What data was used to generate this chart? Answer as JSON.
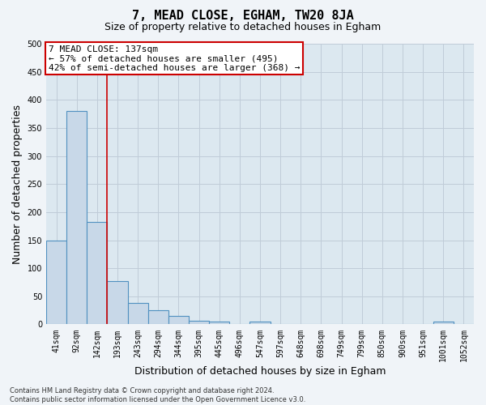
{
  "title1": "7, MEAD CLOSE, EGHAM, TW20 8JA",
  "title2": "Size of property relative to detached houses in Egham",
  "xlabel": "Distribution of detached houses by size in Egham",
  "ylabel": "Number of detached properties",
  "annotation_line1": "7 MEAD CLOSE: 137sqm",
  "annotation_line2": "← 57% of detached houses are smaller (495)",
  "annotation_line3": "42% of semi-detached houses are larger (368) →",
  "categories": [
    "41sqm",
    "92sqm",
    "142sqm",
    "193sqm",
    "243sqm",
    "294sqm",
    "344sqm",
    "395sqm",
    "445sqm",
    "496sqm",
    "547sqm",
    "597sqm",
    "648sqm",
    "698sqm",
    "749sqm",
    "799sqm",
    "850sqm",
    "900sqm",
    "951sqm",
    "1001sqm",
    "1052sqm"
  ],
  "values": [
    150,
    380,
    183,
    77,
    38,
    25,
    15,
    7,
    5,
    0,
    5,
    0,
    0,
    0,
    0,
    0,
    0,
    0,
    0,
    5,
    0
  ],
  "bar_color": "#c8d8e8",
  "bar_edge_color": "#5090c0",
  "bar_edge_width": 0.8,
  "red_line_x": 2,
  "red_line_color": "#cc0000",
  "background_color": "#dce8f0",
  "fig_background_color": "#f0f4f8",
  "ylim": [
    0,
    500
  ],
  "yticks": [
    0,
    50,
    100,
    150,
    200,
    250,
    300,
    350,
    400,
    450,
    500
  ],
  "annotation_box_color": "white",
  "annotation_box_edge": "#cc0000",
  "footer": "Contains HM Land Registry data © Crown copyright and database right 2024.\nContains public sector information licensed under the Open Government Licence v3.0.",
  "grid_color": "#c0ccd8",
  "title1_fontsize": 11,
  "title2_fontsize": 9,
  "tick_fontsize": 7,
  "ylabel_fontsize": 9,
  "xlabel_fontsize": 9,
  "footer_fontsize": 6
}
